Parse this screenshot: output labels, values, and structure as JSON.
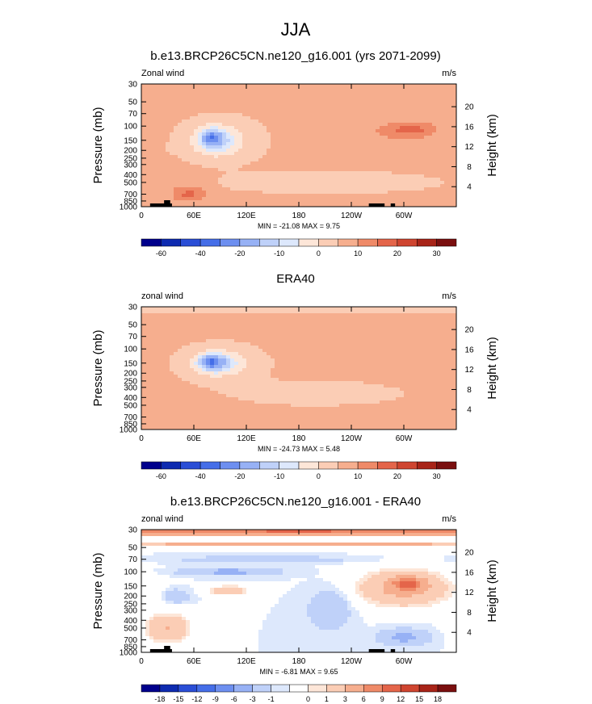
{
  "page_title": "JJA",
  "colors": {
    "scale_ab": [
      "#00008c",
      "#0e2bb0",
      "#2a4ed6",
      "#456ee8",
      "#6d8ff0",
      "#97b1f5",
      "#bfd1f9",
      "#dde8fc",
      "#fde6d8",
      "#fbcdb5",
      "#f6ae8e",
      "#ef8a68",
      "#e4654a",
      "#cf4530",
      "#a82418",
      "#7a0f0f"
    ],
    "scale_diff": [
      "#00008c",
      "#0e2bb0",
      "#2a4ed6",
      "#456ee8",
      "#6d8ff0",
      "#97b1f5",
      "#bfd1f9",
      "#dde8fc",
      "#ffffff",
      "#fde6d8",
      "#fbcdb5",
      "#f6ae8e",
      "#ef8a68",
      "#e4654a",
      "#cf4530",
      "#a82418",
      "#7a0f0f"
    ]
  },
  "chart_data": [
    {
      "type": "heatmap",
      "title": "b.e13.BRCP26C5CN.ne120_g16.001 (yrs 2071-2099)",
      "left_label": "Zonal wind",
      "right_label": "m/s",
      "ylabel": "Pressure (mb)",
      "y2label": "Height (km)",
      "x_ticks": [
        "0",
        "60E",
        "120E",
        "180",
        "120W",
        "60W"
      ],
      "y_ticks": [
        "30",
        "50",
        "70",
        "100",
        "150",
        "200",
        "250",
        "300",
        "400",
        "500",
        "700",
        "850",
        "1000"
      ],
      "y2_ticks": [
        "20",
        "16",
        "12",
        "8",
        "4"
      ],
      "stats": "MIN = -21.08  MAX =  9.75",
      "colorbar_labels": [
        "-60",
        "-40",
        "-20",
        "-10",
        "0",
        "10",
        "20",
        "30"
      ],
      "min": -21.08,
      "max": 9.75,
      "background_value": 1,
      "features": [
        {
          "lon": 90,
          "lev": 150,
          "value": -5,
          "rx": 55,
          "ry": 0.75
        },
        {
          "lon": 85,
          "lev": 150,
          "value": -15,
          "rx": 28,
          "ry": 0.45
        },
        {
          "lon": 80,
          "lev": 140,
          "value": -21,
          "rx": 12,
          "ry": 0.25
        },
        {
          "lon": 210,
          "lev": 500,
          "value": -3,
          "rx": 150,
          "ry": 0.35
        },
        {
          "lon": 290,
          "lev": 120,
          "value": 5,
          "rx": 60,
          "ry": 0.45
        },
        {
          "lon": 310,
          "lev": 110,
          "value": 9,
          "rx": 35,
          "ry": 0.25
        },
        {
          "lon": 50,
          "lev": 600,
          "value": 4,
          "rx": 38,
          "ry": 0.55
        },
        {
          "lon": 55,
          "lev": 700,
          "value": 9,
          "rx": 22,
          "ry": 0.25
        },
        {
          "lon": 15,
          "lev": 200,
          "value": 0.5,
          "rx": 30,
          "ry": 0.3
        }
      ]
    },
    {
      "type": "heatmap",
      "title": "ERA40",
      "left_label": "zonal wind",
      "right_label": "m/s",
      "ylabel": "Pressure (mb)",
      "y2label": "Height (km)",
      "x_ticks": [
        "0",
        "60E",
        "120E",
        "180",
        "120W",
        "60W"
      ],
      "y_ticks": [
        "30",
        "50",
        "70",
        "100",
        "150",
        "200",
        "250",
        "300",
        "400",
        "500",
        "700",
        "850",
        "1000"
      ],
      "y2_ticks": [
        "20",
        "16",
        "12",
        "8",
        "4"
      ],
      "stats": "MIN = -24.73  MAX =  5.48",
      "colorbar_labels": [
        "-60",
        "-40",
        "-20",
        "-10",
        "0",
        "10",
        "20",
        "30"
      ],
      "min": -24.73,
      "max": 5.48,
      "background_value": 1,
      "features": [
        {
          "lon": 180,
          "lev": 30,
          "value": -5,
          "rx": 400,
          "ry": 0.18
        },
        {
          "lon": 90,
          "lev": 150,
          "value": -6,
          "rx": 55,
          "ry": 0.6
        },
        {
          "lon": 85,
          "lev": 150,
          "value": -16,
          "rx": 28,
          "ry": 0.35
        },
        {
          "lon": 80,
          "lev": 145,
          "value": -24,
          "rx": 12,
          "ry": 0.18
        },
        {
          "lon": 200,
          "lev": 350,
          "value": -3,
          "rx": 110,
          "ry": 0.4
        },
        {
          "lon": 300,
          "lev": 140,
          "value": 5,
          "rx": 65,
          "ry": 0.55
        },
        {
          "lon": 220,
          "lev": 70,
          "value": 5,
          "rx": 70,
          "ry": 0.05
        },
        {
          "lon": 60,
          "lev": 650,
          "value": 3,
          "rx": 50,
          "ry": 0.5
        }
      ]
    },
    {
      "type": "heatmap",
      "title": "b.e13.BRCP26C5CN.ne120_g16.001 - ERA40",
      "left_label": "zonal wind",
      "right_label": "m/s",
      "ylabel": "Pressure (mb)",
      "y2label": "Height (km)",
      "x_ticks": [
        "0",
        "60E",
        "120E",
        "180",
        "120W",
        "60W"
      ],
      "y_ticks": [
        "30",
        "50",
        "70",
        "100",
        "150",
        "200",
        "250",
        "300",
        "400",
        "500",
        "700",
        "850",
        "1000"
      ],
      "y2_ticks": [
        "20",
        "16",
        "12",
        "8",
        "4"
      ],
      "stats": "MIN = -6.81  MAX =  9.65",
      "colorbar_labels": [
        "-18",
        "-15",
        "-12",
        "-9",
        "-6",
        "-3",
        "-1",
        "0",
        "1",
        "3",
        "6",
        "9",
        "12",
        "15",
        "18"
      ],
      "min": -6.81,
      "max": 9.65,
      "background_value": -0.5,
      "features": [
        {
          "lon": 180,
          "lev": 32,
          "value": 9.5,
          "rx": 400,
          "ry": 0.12
        },
        {
          "lon": 180,
          "lev": 45,
          "value": 4,
          "rx": 400,
          "ry": 0.08
        },
        {
          "lon": 300,
          "lev": 160,
          "value": 4,
          "rx": 60,
          "ry": 0.6
        },
        {
          "lon": 305,
          "lev": 140,
          "value": 8,
          "rx": 20,
          "ry": 0.2
        },
        {
          "lon": 215,
          "lev": 300,
          "value": -3,
          "rx": 25,
          "ry": 0.6
        },
        {
          "lon": 100,
          "lev": 100,
          "value": -4,
          "rx": 60,
          "ry": 0.12
        },
        {
          "lon": 100,
          "lev": 170,
          "value": 3,
          "rx": 25,
          "ry": 0.15
        },
        {
          "lon": 40,
          "lev": 200,
          "value": -3,
          "rx": 15,
          "ry": 0.2
        },
        {
          "lon": 30,
          "lev": 500,
          "value": 3,
          "rx": 30,
          "ry": 0.5
        },
        {
          "lon": 300,
          "lev": 650,
          "value": -4,
          "rx": 30,
          "ry": 0.25
        },
        {
          "lon": 140,
          "lev": 70,
          "value": -2,
          "rx": 120,
          "ry": 0.1
        }
      ]
    }
  ]
}
